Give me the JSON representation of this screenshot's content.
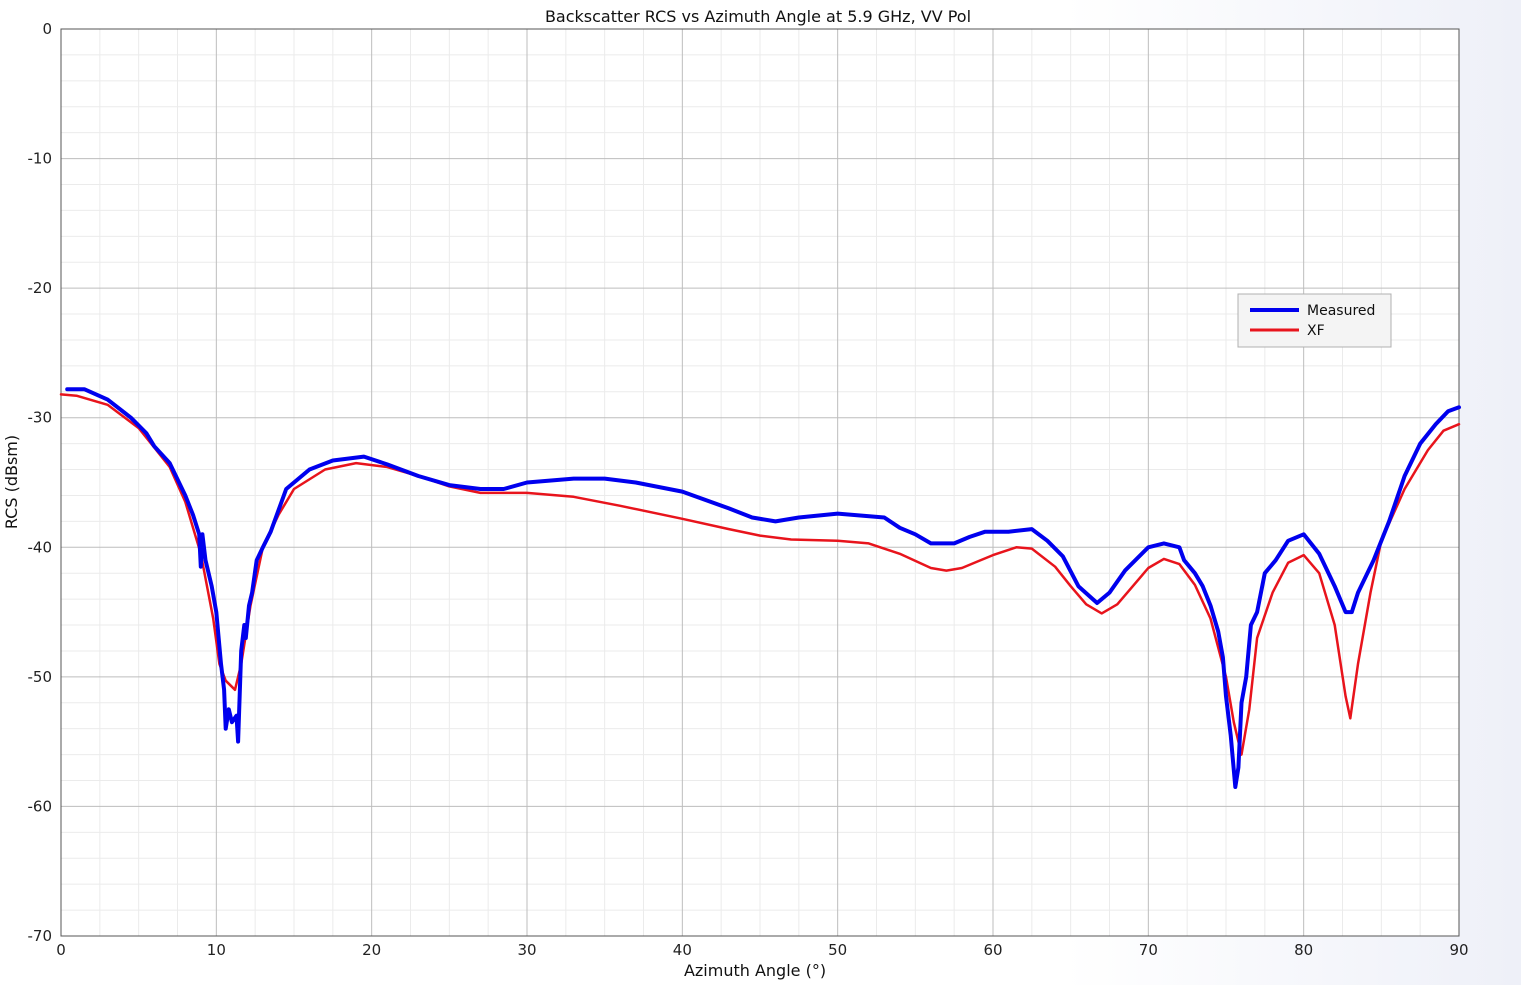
{
  "chart_data": {
    "type": "line",
    "title": "Backscatter RCS vs Azimuth Angle at 5.9 GHz, VV Pol",
    "xlabel": "Azimuth Angle (°)",
    "ylabel": "RCS (dBsm)",
    "xlim": [
      0,
      90
    ],
    "ylim": [
      -70,
      0
    ],
    "xticks": [
      0,
      10,
      20,
      30,
      40,
      50,
      60,
      70,
      80,
      90
    ],
    "yticks": [
      0,
      -10,
      -20,
      -30,
      -40,
      -50,
      -60,
      -70
    ],
    "grid": true,
    "legend_position": "right",
    "series": [
      {
        "name": "Measured",
        "color": "#0000ee",
        "points": [
          [
            0.4,
            -27.8
          ],
          [
            1.5,
            -27.8
          ],
          [
            3,
            -28.6
          ],
          [
            4.5,
            -30.0
          ],
          [
            5.5,
            -31.2
          ],
          [
            6,
            -32.2
          ],
          [
            7,
            -33.5
          ],
          [
            8,
            -36.0
          ],
          [
            8.5,
            -37.5
          ],
          [
            8.9,
            -39.0
          ],
          [
            9.0,
            -41.5
          ],
          [
            9.1,
            -39.0
          ],
          [
            9.3,
            -41.0
          ],
          [
            9.7,
            -43.0
          ],
          [
            10.0,
            -45.0
          ],
          [
            10.3,
            -49.0
          ],
          [
            10.5,
            -51.0
          ],
          [
            10.6,
            -54.0
          ],
          [
            10.8,
            -52.5
          ],
          [
            11.0,
            -53.5
          ],
          [
            11.3,
            -53.0
          ],
          [
            11.4,
            -55.0
          ],
          [
            11.6,
            -48.0
          ],
          [
            11.8,
            -46.0
          ],
          [
            11.9,
            -47.0
          ],
          [
            12.1,
            -44.5
          ],
          [
            12.3,
            -43.5
          ],
          [
            12.6,
            -41.0
          ],
          [
            13,
            -40.0
          ],
          [
            13.5,
            -38.8
          ],
          [
            14.5,
            -35.5
          ],
          [
            16,
            -34.0
          ],
          [
            17.5,
            -33.3
          ],
          [
            19.5,
            -33.0
          ],
          [
            21,
            -33.6
          ],
          [
            23,
            -34.5
          ],
          [
            25,
            -35.2
          ],
          [
            27,
            -35.5
          ],
          [
            28.5,
            -35.5
          ],
          [
            30,
            -35.0
          ],
          [
            33,
            -34.7
          ],
          [
            35,
            -34.7
          ],
          [
            37,
            -35.0
          ],
          [
            40,
            -35.7
          ],
          [
            43,
            -37.0
          ],
          [
            44.5,
            -37.7
          ],
          [
            46,
            -38.0
          ],
          [
            47.5,
            -37.7
          ],
          [
            50,
            -37.4
          ],
          [
            53,
            -37.7
          ],
          [
            54,
            -38.5
          ],
          [
            55,
            -39.0
          ],
          [
            56,
            -39.7
          ],
          [
            57.5,
            -39.7
          ],
          [
            58.5,
            -39.2
          ],
          [
            59.5,
            -38.8
          ],
          [
            61,
            -38.8
          ],
          [
            62.5,
            -38.6
          ],
          [
            63.5,
            -39.5
          ],
          [
            64.5,
            -40.7
          ],
          [
            65.5,
            -43.0
          ],
          [
            66.7,
            -44.3
          ],
          [
            67.5,
            -43.5
          ],
          [
            68.5,
            -41.8
          ],
          [
            70,
            -40.0
          ],
          [
            71,
            -39.7
          ],
          [
            72,
            -40.0
          ],
          [
            72.3,
            -41.0
          ],
          [
            73,
            -42.0
          ],
          [
            73.5,
            -43.0
          ],
          [
            74,
            -44.5
          ],
          [
            74.5,
            -46.5
          ],
          [
            74.8,
            -48.5
          ],
          [
            75.0,
            -51.5
          ],
          [
            75.3,
            -54.5
          ],
          [
            75.6,
            -58.5
          ],
          [
            75.8,
            -57.0
          ],
          [
            76.0,
            -52.0
          ],
          [
            76.3,
            -50.0
          ],
          [
            76.6,
            -46.0
          ],
          [
            77,
            -45.0
          ],
          [
            77.5,
            -42.0
          ],
          [
            78.2,
            -41.0
          ],
          [
            79,
            -39.5
          ],
          [
            80,
            -39.0
          ],
          [
            81,
            -40.5
          ],
          [
            82,
            -43.0
          ],
          [
            82.7,
            -45.0
          ],
          [
            83.1,
            -45.0
          ],
          [
            83.5,
            -43.5
          ],
          [
            84.5,
            -41.0
          ],
          [
            85.5,
            -38.0
          ],
          [
            86.5,
            -34.5
          ],
          [
            87.5,
            -32.0
          ],
          [
            88.5,
            -30.5
          ],
          [
            89.3,
            -29.5
          ],
          [
            90,
            -29.2
          ]
        ]
      },
      {
        "name": "XF",
        "color": "#e8141c",
        "points": [
          [
            0,
            -28.2
          ],
          [
            1,
            -28.3
          ],
          [
            3,
            -29.0
          ],
          [
            5,
            -30.8
          ],
          [
            6,
            -32.3
          ],
          [
            7,
            -33.8
          ],
          [
            8,
            -36.5
          ],
          [
            9,
            -40.5
          ],
          [
            9.8,
            -45.5
          ],
          [
            10.2,
            -49.0
          ],
          [
            10.6,
            -50.3
          ],
          [
            11.2,
            -51.0
          ],
          [
            11.6,
            -49.0
          ],
          [
            12.2,
            -44.5
          ],
          [
            13,
            -40.0
          ],
          [
            14,
            -37.5
          ],
          [
            15,
            -35.5
          ],
          [
            17,
            -34.0
          ],
          [
            19,
            -33.5
          ],
          [
            21,
            -33.8
          ],
          [
            23,
            -34.5
          ],
          [
            25,
            -35.3
          ],
          [
            27,
            -35.8
          ],
          [
            30,
            -35.8
          ],
          [
            33,
            -36.1
          ],
          [
            36,
            -36.8
          ],
          [
            40,
            -37.8
          ],
          [
            43,
            -38.6
          ],
          [
            45,
            -39.1
          ],
          [
            47,
            -39.4
          ],
          [
            50,
            -39.5
          ],
          [
            52,
            -39.7
          ],
          [
            54,
            -40.5
          ],
          [
            56,
            -41.6
          ],
          [
            57,
            -41.8
          ],
          [
            58,
            -41.6
          ],
          [
            59,
            -41.1
          ],
          [
            60,
            -40.6
          ],
          [
            61.5,
            -40.0
          ],
          [
            62.5,
            -40.1
          ],
          [
            64,
            -41.5
          ],
          [
            65,
            -43.0
          ],
          [
            66,
            -44.4
          ],
          [
            67,
            -45.1
          ],
          [
            68,
            -44.4
          ],
          [
            69,
            -43.0
          ],
          [
            70,
            -41.6
          ],
          [
            71,
            -40.9
          ],
          [
            72,
            -41.3
          ],
          [
            73,
            -42.9
          ],
          [
            74,
            -45.5
          ],
          [
            75,
            -50.0
          ],
          [
            75.5,
            -53.5
          ],
          [
            76,
            -56.0
          ],
          [
            76.5,
            -52.5
          ],
          [
            77,
            -47.0
          ],
          [
            78,
            -43.5
          ],
          [
            79,
            -41.2
          ],
          [
            80,
            -40.6
          ],
          [
            81,
            -42.0
          ],
          [
            82,
            -46.0
          ],
          [
            82.7,
            -51.5
          ],
          [
            83.0,
            -53.2
          ],
          [
            83.5,
            -49.0
          ],
          [
            84.3,
            -43.5
          ],
          [
            85,
            -39.5
          ],
          [
            86.5,
            -35.5
          ],
          [
            88,
            -32.5
          ],
          [
            89,
            -31.0
          ],
          [
            90,
            -30.5
          ]
        ]
      }
    ]
  }
}
